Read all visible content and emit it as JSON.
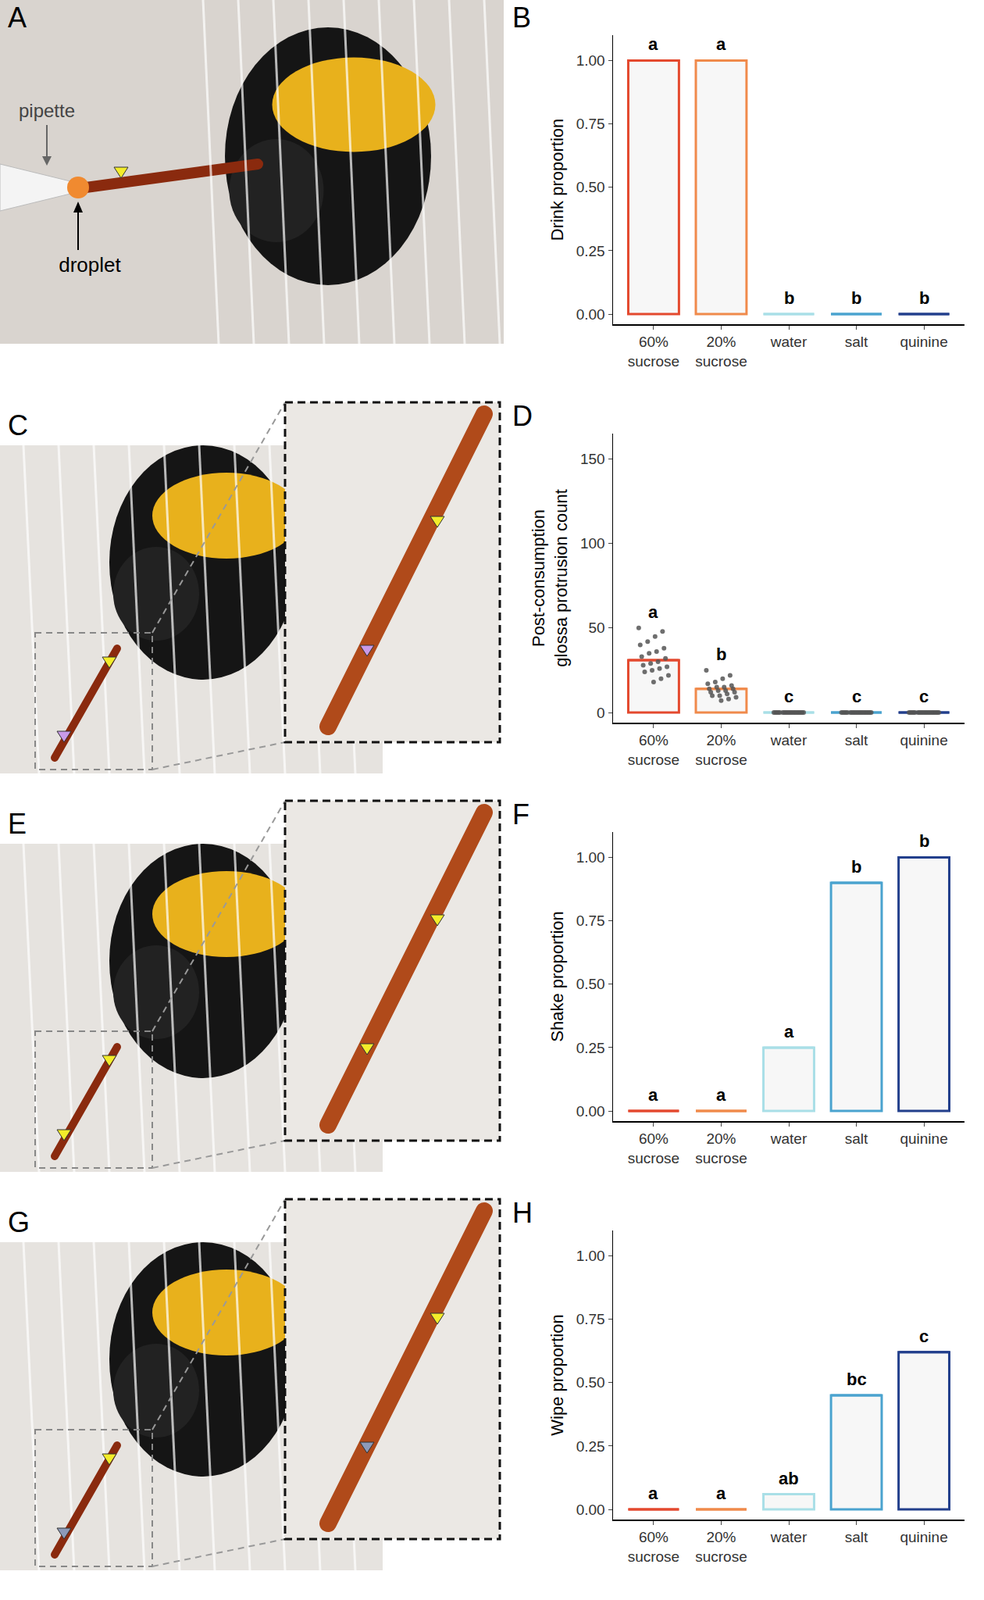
{
  "chart_data": [
    {
      "type": "bar",
      "panel": "B",
      "y_label": "Drink proportion",
      "categories": [
        "60% sucrose",
        "20% sucrose",
        "water",
        "salt",
        "quinine"
      ],
      "values": [
        1.0,
        1.0,
        0,
        0,
        0
      ],
      "colors": [
        "#e4492e",
        "#f08a4b",
        "#a9dfe7",
        "#4aa3cf",
        "#223f8c"
      ],
      "annotations": [
        "a",
        "a",
        "b",
        "b",
        "b"
      ],
      "ylim": [
        -0.04,
        1.1
      ],
      "yticks": [
        {
          "value": 0,
          "label": "0.00"
        },
        {
          "value": 0.25,
          "label": "0.25"
        },
        {
          "value": 0.5,
          "label": "0.50"
        },
        {
          "value": 0.75,
          "label": "0.75"
        },
        {
          "value": 1,
          "label": "1.00"
        }
      ],
      "grid": false
    },
    {
      "type": "bar",
      "panel": "D",
      "y_label": "Post-consumption glossa protrusion count",
      "categories": [
        "60% sucrose",
        "20% sucrose",
        "water",
        "salt",
        "quinine"
      ],
      "values": [
        31,
        14,
        0,
        0,
        0
      ],
      "points": [
        [
          50,
          48,
          45,
          42,
          40,
          38,
          36,
          35,
          33,
          32,
          30,
          29,
          28,
          27,
          26,
          25,
          24,
          22,
          20,
          18
        ],
        [
          25,
          22,
          20,
          18,
          17,
          16,
          15,
          15,
          14,
          14,
          13,
          13,
          12,
          12,
          11,
          10,
          10,
          9,
          8,
          7
        ],
        [
          0,
          0,
          0,
          0,
          0,
          0,
          0,
          0,
          0,
          0,
          0,
          0,
          0,
          0,
          0,
          0,
          0,
          0,
          0,
          0
        ],
        [
          0,
          0,
          0,
          0,
          0,
          0,
          0,
          0,
          0,
          0,
          0,
          0,
          0,
          0,
          0,
          0,
          0,
          0,
          0,
          0
        ],
        [
          0,
          0,
          0,
          0,
          0,
          0,
          0,
          0,
          0,
          0,
          0,
          0,
          0,
          0,
          0,
          0,
          0,
          0,
          0,
          0
        ]
      ],
      "colors": [
        "#e4492e",
        "#f08a4b",
        "#a9dfe7",
        "#4aa3cf",
        "#223f8c"
      ],
      "annotations": [
        "a",
        "b",
        "c",
        "c",
        "c"
      ],
      "ylim": [
        -6,
        165
      ],
      "yticks": [
        0,
        50,
        100,
        150
      ],
      "grid": false
    },
    {
      "type": "bar",
      "panel": "F",
      "y_label": "Shake proportion",
      "categories": [
        "60% sucrose",
        "20% sucrose",
        "water",
        "salt",
        "quinine"
      ],
      "values": [
        0,
        0,
        0.25,
        0.9,
        1.0
      ],
      "colors": [
        "#e4492e",
        "#f08a4b",
        "#a9dfe7",
        "#4aa3cf",
        "#223f8c"
      ],
      "annotations": [
        "a",
        "a",
        "a",
        "b",
        "b"
      ],
      "ylim": [
        -0.04,
        1.1
      ],
      "yticks": [
        {
          "value": 0,
          "label": "0.00"
        },
        {
          "value": 0.25,
          "label": "0.25"
        },
        {
          "value": 0.5,
          "label": "0.50"
        },
        {
          "value": 0.75,
          "label": "0.75"
        },
        {
          "value": 1,
          "label": "1.00"
        }
      ],
      "grid": false
    },
    {
      "type": "bar",
      "panel": "H",
      "y_label": "Wipe proportion",
      "categories": [
        "60% sucrose",
        "20% sucrose",
        "water",
        "salt",
        "quinine"
      ],
      "values": [
        0,
        0,
        0.06,
        0.45,
        0.62
      ],
      "colors": [
        "#e4492e",
        "#f08a4b",
        "#a9dfe7",
        "#4aa3cf",
        "#223f8c"
      ],
      "annotations": [
        "a",
        "a",
        "ab",
        "bc",
        "c"
      ],
      "ylim": [
        -0.04,
        1.1
      ],
      "yticks": [
        {
          "value": 0,
          "label": "0.00"
        },
        {
          "value": 0.25,
          "label": "0.25"
        },
        {
          "value": 0.5,
          "label": "0.50"
        },
        {
          "value": 0.75,
          "label": "0.75"
        },
        {
          "value": 1,
          "label": "1.00"
        }
      ],
      "grid": false
    }
  ],
  "photos": [
    {
      "panel": "A",
      "labels": [
        "pipette",
        "droplet"
      ]
    },
    {
      "panel": "C"
    },
    {
      "panel": "E"
    },
    {
      "panel": "G"
    }
  ]
}
